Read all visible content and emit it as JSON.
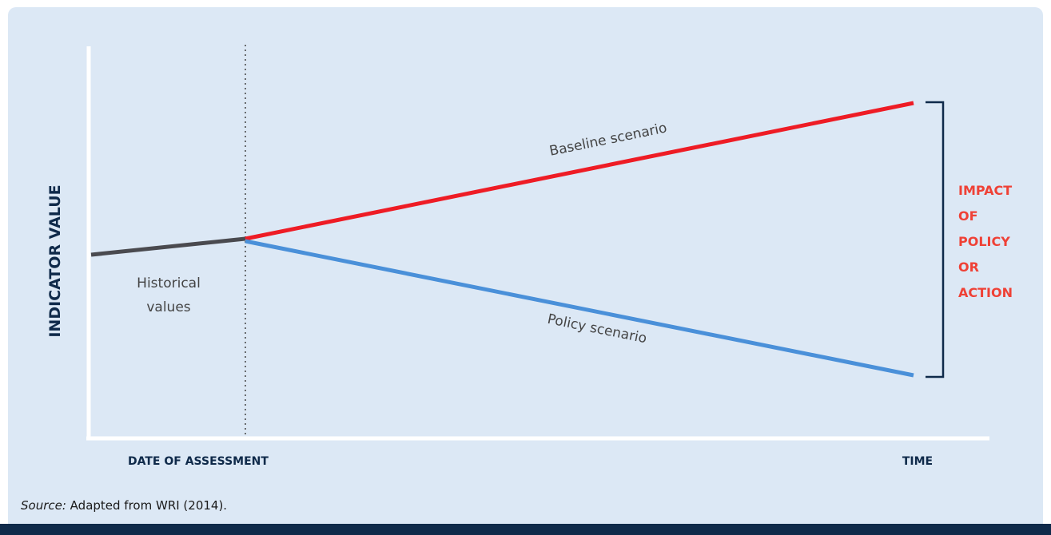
{
  "diagram": {
    "y_axis_label": "INDICATOR VALUE",
    "x_axis_left_label": "DATE OF ASSESSMENT",
    "x_axis_right_label": "TIME",
    "historical_label_line1": "Historical",
    "historical_label_line2": "values",
    "baseline_label": "Baseline scenario",
    "policy_label": "Policy scenario",
    "impact_label": [
      "IMPACT",
      "OF",
      "POLICY",
      "OR",
      "ACTION"
    ],
    "colors": {
      "historical": "#4a4a4f",
      "baseline": "#ee1c25",
      "policy": "#4a90d9",
      "bracket": "#0f2a4a",
      "impact_text": "#ef4136",
      "axis": "#ffffff",
      "text_dark": "#0f2a4a",
      "text_gray": "#444444"
    }
  },
  "source": {
    "prefix": "Source:",
    "text": " Adapted from WRI (2014)."
  }
}
